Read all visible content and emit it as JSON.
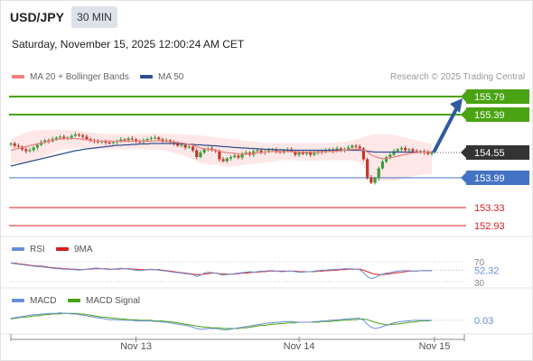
{
  "header": {
    "symbol": "USD/JPY",
    "timeframe": "30 MIN",
    "datetime": "Saturday, November 15, 2025 12:00:24 AM CET"
  },
  "legend": {
    "ma20_label": "MA 20 + Bollinger Bands",
    "ma50_label": "MA 50",
    "credit": "Research © 2025 Trading Central"
  },
  "rsi_legend": {
    "rsi_label": "RSI",
    "ma_label": "9MA"
  },
  "macd_legend": {
    "macd_label": "MACD",
    "signal_label": "MACD Signal"
  },
  "colors": {
    "target": "#4aa312",
    "pivot": "#4472c4",
    "support": "#d61f1f",
    "current": "#333333",
    "ma20": "#f08080",
    "ma50": "#2f4f8f",
    "bb_fill": "#fde4e4",
    "candle_up": "#3d9b3d",
    "candle_down": "#c0392b",
    "rsi": "#6a8fd8",
    "rsi_ma": "#d62020",
    "macd": "#6a8fd8",
    "macd_signal": "#4aa312",
    "arrow": "#2f5aa0"
  },
  "chart_data": [
    {
      "type": "candlestick",
      "name": "price",
      "x_ticks": [
        "Nov 13",
        "Nov 14",
        "Nov 15"
      ],
      "levels": [
        {
          "value": 155.79,
          "label": "155.79",
          "kind": "target"
        },
        {
          "value": 155.39,
          "label": "155.39",
          "kind": "target"
        },
        {
          "value": 154.55,
          "label": "154.55",
          "kind": "current"
        },
        {
          "value": 153.99,
          "label": "153.99",
          "kind": "pivot"
        },
        {
          "value": 153.33,
          "label": "153.33",
          "kind": "support"
        },
        {
          "value": 152.93,
          "label": "152.93",
          "kind": "support"
        }
      ],
      "close": [
        154.75,
        154.7,
        154.68,
        154.62,
        154.58,
        154.6,
        154.66,
        154.72,
        154.78,
        154.82,
        154.8,
        154.85,
        154.88,
        154.9,
        154.86,
        154.88,
        154.92,
        154.95,
        154.93,
        154.9,
        154.85,
        154.82,
        154.8,
        154.78,
        154.8,
        154.77,
        154.76,
        154.78,
        154.8,
        154.84,
        154.82,
        154.86,
        154.84,
        154.8,
        154.78,
        154.82,
        154.85,
        154.87,
        154.88,
        154.84,
        154.8,
        154.82,
        154.78,
        154.75,
        154.7,
        154.72,
        154.66,
        154.68,
        154.6,
        154.45,
        154.55,
        154.62,
        154.64,
        154.6,
        154.58,
        154.4,
        154.36,
        154.42,
        154.45,
        154.48,
        154.44,
        154.52,
        154.55,
        154.5,
        154.58,
        154.6,
        154.55,
        154.57,
        154.6,
        154.62,
        154.58,
        154.55,
        154.6,
        154.62,
        154.58,
        154.5,
        154.56,
        154.52,
        154.55,
        154.5,
        154.54,
        154.58,
        154.56,
        154.6,
        154.62,
        154.58,
        154.64,
        154.6,
        154.62,
        154.66,
        154.7,
        154.68,
        154.64,
        154.4,
        154.0,
        153.88,
        153.98,
        154.2,
        154.35,
        154.45,
        154.5,
        154.58,
        154.62,
        154.65,
        154.6,
        154.62,
        154.58,
        154.56,
        154.58,
        154.55,
        154.52,
        154.55
      ],
      "ma20": [
        154.6,
        154.62,
        154.64,
        154.66,
        154.68,
        154.7,
        154.72,
        154.74,
        154.76,
        154.78,
        154.8,
        154.82,
        154.84,
        154.85,
        154.86,
        154.86,
        154.86,
        154.86,
        154.85,
        154.84,
        154.83,
        154.82,
        154.81,
        154.8,
        154.8,
        154.8,
        154.8,
        154.8,
        154.8,
        154.8,
        154.8,
        154.8,
        154.8,
        154.8,
        154.8,
        154.8,
        154.8,
        154.8,
        154.81,
        154.81,
        154.8,
        154.8,
        154.79,
        154.78,
        154.77,
        154.76,
        154.75,
        154.73,
        154.71,
        154.68,
        154.65,
        154.63,
        154.62,
        154.61,
        154.6,
        154.58,
        154.56,
        154.55,
        154.54,
        154.53,
        154.52,
        154.52,
        154.52,
        154.52,
        154.53,
        154.54,
        154.55,
        154.56,
        154.57,
        154.57,
        154.57,
        154.57,
        154.57,
        154.57,
        154.57,
        154.57,
        154.56,
        154.56,
        154.56,
        154.56,
        154.56,
        154.56,
        154.56,
        154.57,
        154.57,
        154.58,
        154.58,
        154.59,
        154.6,
        154.61,
        154.62,
        154.62,
        154.62,
        154.6,
        154.56,
        154.5,
        154.46,
        154.43,
        154.42,
        154.42,
        154.43,
        154.45,
        154.47,
        154.49,
        154.51,
        154.53,
        154.54,
        154.55,
        154.56,
        154.56,
        154.56,
        154.56
      ],
      "ma50": [
        154.25,
        154.27,
        154.29,
        154.31,
        154.33,
        154.35,
        154.37,
        154.39,
        154.41,
        154.43,
        154.45,
        154.47,
        154.49,
        154.51,
        154.53,
        154.55,
        154.57,
        154.59,
        154.6,
        154.62,
        154.63,
        154.64,
        154.65,
        154.66,
        154.67,
        154.68,
        154.69,
        154.7,
        154.71,
        154.71,
        154.72,
        154.72,
        154.73,
        154.73,
        154.74,
        154.74,
        154.74,
        154.75,
        154.75,
        154.75,
        154.75,
        154.75,
        154.75,
        154.75,
        154.75,
        154.74,
        154.74,
        154.73,
        154.73,
        154.72,
        154.72,
        154.71,
        154.71,
        154.7,
        154.7,
        154.69,
        154.68,
        154.68,
        154.67,
        154.66,
        154.66,
        154.65,
        154.65,
        154.64,
        154.64,
        154.63,
        154.63,
        154.62,
        154.62,
        154.62,
        154.61,
        154.61,
        154.61,
        154.6,
        154.6,
        154.6,
        154.6,
        154.6,
        154.6,
        154.6,
        154.6,
        154.6,
        154.6,
        154.6,
        154.6,
        154.6,
        154.6,
        154.6,
        154.6,
        154.6,
        154.6,
        154.6,
        154.6,
        154.59,
        154.58,
        154.57,
        154.56,
        154.56,
        154.56,
        154.56,
        154.56,
        154.56,
        154.56,
        154.56,
        154.56,
        154.56,
        154.56,
        154.56,
        154.56,
        154.56,
        154.56,
        154.56
      ],
      "bb_upper": [
        154.85,
        154.88,
        154.92,
        154.96,
        155.0,
        155.02,
        155.04,
        155.05,
        155.05,
        155.05,
        155.05,
        155.06,
        155.06,
        155.06,
        155.05,
        155.05,
        155.04,
        155.04,
        155.03,
        155.02,
        155.01,
        155.0,
        154.99,
        154.98,
        154.97,
        154.96,
        154.96,
        154.96,
        154.96,
        154.96,
        154.96,
        154.96,
        154.96,
        154.96,
        154.96,
        154.96,
        154.96,
        154.97,
        154.97,
        154.97,
        154.97,
        154.96,
        154.96,
        154.96,
        154.96,
        154.96,
        154.95,
        154.95,
        154.94,
        154.94,
        154.93,
        154.92,
        154.91,
        154.9,
        154.89,
        154.88,
        154.87,
        154.86,
        154.85,
        154.84,
        154.83,
        154.82,
        154.81,
        154.8,
        154.79,
        154.78,
        154.77,
        154.76,
        154.76,
        154.76,
        154.76,
        154.76,
        154.76,
        154.76,
        154.76,
        154.76,
        154.76,
        154.76,
        154.76,
        154.76,
        154.76,
        154.76,
        154.76,
        154.76,
        154.76,
        154.77,
        154.77,
        154.78,
        154.79,
        154.8,
        154.82,
        154.84,
        154.86,
        154.9,
        154.92,
        154.94,
        154.95,
        154.96,
        154.96,
        154.96,
        154.95,
        154.94,
        154.92,
        154.9,
        154.88,
        154.86,
        154.84,
        154.82,
        154.8,
        154.78,
        154.76,
        154.74
      ],
      "bb_lower": [
        154.32,
        154.32,
        154.32,
        154.33,
        154.34,
        154.36,
        154.38,
        154.4,
        154.43,
        154.46,
        154.5,
        154.54,
        154.58,
        154.6,
        154.62,
        154.63,
        154.64,
        154.65,
        154.65,
        154.65,
        154.65,
        154.64,
        154.63,
        154.62,
        154.62,
        154.62,
        154.62,
        154.62,
        154.62,
        154.62,
        154.62,
        154.62,
        154.62,
        154.62,
        154.62,
        154.62,
        154.62,
        154.62,
        154.62,
        154.62,
        154.6,
        154.58,
        154.56,
        154.54,
        154.52,
        154.5,
        154.47,
        154.44,
        154.4,
        154.36,
        154.32,
        154.3,
        154.29,
        154.28,
        154.28,
        154.26,
        154.25,
        154.24,
        154.24,
        154.25,
        154.26,
        154.27,
        154.28,
        154.29,
        154.3,
        154.31,
        154.32,
        154.33,
        154.34,
        154.35,
        154.36,
        154.37,
        154.38,
        154.38,
        154.38,
        154.38,
        154.37,
        154.37,
        154.37,
        154.37,
        154.37,
        154.37,
        154.37,
        154.38,
        154.38,
        154.38,
        154.38,
        154.38,
        154.38,
        154.38,
        154.37,
        154.36,
        154.34,
        154.25,
        154.1,
        153.95,
        153.92,
        153.92,
        153.92,
        153.92,
        153.92,
        153.93,
        153.94,
        153.96,
        153.98,
        154.0,
        154.02,
        154.04,
        154.05,
        154.06,
        154.07,
        154.07
      ],
      "forecast_arrow": {
        "from": 154.55,
        "to": 155.79
      }
    },
    {
      "type": "line",
      "name": "RSI",
      "ylim": [
        30,
        70
      ],
      "ticks": [
        "70",
        "30"
      ],
      "last_value": "52.32",
      "rsi": [
        68,
        66,
        65,
        64,
        63,
        62,
        61,
        60,
        60,
        59,
        58,
        57,
        56,
        56,
        55,
        55,
        54,
        54,
        53,
        54,
        55,
        56,
        57,
        57,
        56,
        55,
        54,
        55,
        56,
        57,
        56,
        55,
        54,
        53,
        52,
        53,
        54,
        55,
        54,
        53,
        52,
        51,
        50,
        49,
        48,
        47,
        46,
        45,
        44,
        40,
        43,
        47,
        49,
        48,
        47,
        45,
        43,
        44,
        45,
        46,
        47,
        48,
        49,
        50,
        49,
        50,
        51,
        51,
        52,
        52,
        51,
        50,
        50,
        51,
        51,
        50,
        49,
        49,
        50,
        50,
        51,
        52,
        53,
        53,
        54,
        54,
        55,
        55,
        56,
        56,
        56,
        55,
        54,
        48,
        40,
        36,
        38,
        42,
        45,
        47,
        48,
        50,
        51,
        52,
        52,
        52,
        51,
        51,
        52,
        52,
        52,
        52.32
      ],
      "rsi_ma": [
        67,
        67,
        66,
        65,
        64,
        63,
        62,
        61,
        61,
        60,
        59,
        58,
        57,
        57,
        56,
        56,
        55,
        55,
        54,
        54,
        55,
        55,
        56,
        56,
        56,
        56,
        55,
        55,
        55,
        56,
        56,
        56,
        55,
        55,
        54,
        54,
        54,
        54,
        54,
        54,
        53,
        52,
        51,
        50,
        49,
        48,
        47,
        46,
        45,
        44,
        44,
        45,
        46,
        47,
        47,
        46,
        45,
        45,
        45,
        45,
        46,
        47,
        47,
        48,
        49,
        49,
        50,
        50,
        51,
        51,
        51,
        51,
        51,
        51,
        51,
        51,
        50,
        50,
        50,
        50,
        50,
        51,
        51,
        52,
        52,
        53,
        53,
        54,
        54,
        55,
        55,
        55,
        55,
        53,
        50,
        47,
        45,
        44,
        44,
        45,
        46,
        47,
        48,
        49,
        50,
        51,
        51,
        51,
        52,
        52,
        52,
        52
      ]
    },
    {
      "type": "line",
      "name": "MACD",
      "last_value": "0.03",
      "macd": [
        0.06,
        0.07,
        0.08,
        0.09,
        0.1,
        0.11,
        0.12,
        0.12,
        0.13,
        0.13,
        0.14,
        0.14,
        0.14,
        0.15,
        0.14,
        0.14,
        0.13,
        0.13,
        0.12,
        0.11,
        0.1,
        0.09,
        0.08,
        0.07,
        0.06,
        0.05,
        0.04,
        0.04,
        0.04,
        0.03,
        0.03,
        0.03,
        0.03,
        0.02,
        0.02,
        0.02,
        0.02,
        0.02,
        0.01,
        0.01,
        0.0,
        0.0,
        -0.01,
        -0.02,
        -0.03,
        -0.04,
        -0.05,
        -0.06,
        -0.08,
        -0.1,
        -0.11,
        -0.11,
        -0.1,
        -0.1,
        -0.1,
        -0.11,
        -0.12,
        -0.12,
        -0.11,
        -0.1,
        -0.09,
        -0.08,
        -0.07,
        -0.06,
        -0.05,
        -0.04,
        -0.03,
        -0.02,
        -0.01,
        -0.01,
        0.0,
        0.0,
        0.01,
        0.01,
        0.01,
        0.0,
        0.0,
        0.0,
        0.0,
        0.0,
        0.01,
        0.01,
        0.02,
        0.02,
        0.03,
        0.03,
        0.04,
        0.04,
        0.05,
        0.05,
        0.06,
        0.06,
        0.06,
        0.03,
        -0.03,
        -0.08,
        -0.1,
        -0.09,
        -0.07,
        -0.05,
        -0.03,
        -0.01,
        0.0,
        0.01,
        0.02,
        0.02,
        0.03,
        0.03,
        0.03,
        0.03,
        0.03,
        0.03
      ],
      "signal": [
        0.05,
        0.06,
        0.07,
        0.08,
        0.08,
        0.09,
        0.1,
        0.1,
        0.11,
        0.12,
        0.12,
        0.13,
        0.13,
        0.13,
        0.14,
        0.14,
        0.14,
        0.14,
        0.13,
        0.13,
        0.12,
        0.11,
        0.1,
        0.09,
        0.08,
        0.08,
        0.07,
        0.06,
        0.06,
        0.05,
        0.05,
        0.04,
        0.04,
        0.04,
        0.03,
        0.03,
        0.03,
        0.03,
        0.02,
        0.02,
        0.02,
        0.01,
        0.01,
        0.0,
        -0.01,
        -0.02,
        -0.03,
        -0.04,
        -0.05,
        -0.06,
        -0.07,
        -0.08,
        -0.08,
        -0.09,
        -0.09,
        -0.09,
        -0.1,
        -0.1,
        -0.1,
        -0.1,
        -0.1,
        -0.09,
        -0.09,
        -0.08,
        -0.07,
        -0.06,
        -0.05,
        -0.05,
        -0.04,
        -0.03,
        -0.03,
        -0.02,
        -0.02,
        -0.01,
        -0.01,
        -0.01,
        0.0,
        0.0,
        0.0,
        0.0,
        0.0,
        0.0,
        0.01,
        0.01,
        0.01,
        0.02,
        0.02,
        0.03,
        0.03,
        0.03,
        0.04,
        0.04,
        0.05,
        0.05,
        0.04,
        0.02,
        0.0,
        -0.02,
        -0.03,
        -0.04,
        -0.04,
        -0.03,
        -0.03,
        -0.02,
        -0.01,
        0.0,
        0.0,
        0.01,
        0.02,
        0.02,
        0.02,
        0.03
      ]
    }
  ]
}
